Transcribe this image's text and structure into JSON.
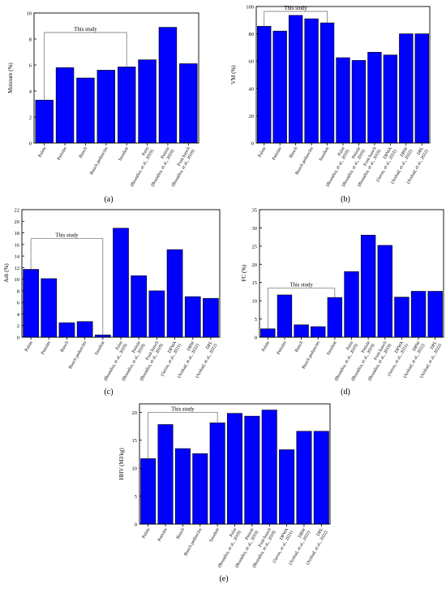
{
  "bar_color": "#0000ff",
  "chart_data": [
    {
      "panel": "(a)",
      "type": "bar",
      "ylabel": "Moisture (%)",
      "ylim": [
        0,
        10
      ],
      "yticks": [
        0,
        2,
        4,
        6,
        8,
        10
      ],
      "group_label": "This study",
      "group_count": 5,
      "categories": [
        [
          "Palms"
        ],
        [
          "Petioles"
        ],
        [
          "Bunch"
        ],
        [
          "Bunch peduncles"
        ],
        [
          "Sawdust"
        ],
        [
          "Palm",
          "(Bousdira, et al., 2019)"
        ],
        [
          "Petiole",
          "(Bousdira, et al., 2019)"
        ],
        [
          "Fruit bunch",
          "(Bousdira, et al., 2019)"
        ]
      ],
      "values": [
        3.3,
        5.8,
        5.0,
        5.6,
        5.85,
        6.4,
        8.9,
        6.1
      ]
    },
    {
      "panel": "(b)",
      "type": "bar",
      "ylabel": "VM (%)",
      "ylim": [
        0,
        100
      ],
      "yticks": [
        0,
        20,
        40,
        60,
        80,
        100
      ],
      "group_label": "This study",
      "group_count": 5,
      "categories": [
        [
          "Palms"
        ],
        [
          "Petioles"
        ],
        [
          "Bunch"
        ],
        [
          "Bunch peduncles"
        ],
        [
          "Sawdust"
        ],
        [
          "Palm",
          "(Bousdira, et al., 2019)"
        ],
        [
          "Petiole",
          "(Bousdira, et al., 2019)"
        ],
        [
          "Fruit bunch",
          "(Bousdira, et al., 2019)"
        ],
        [
          "DPWA",
          "(Jarros, et al., 2021)"
        ],
        [
          "DBW",
          "(Arshad, et al., 2022)"
        ],
        [
          "DPL",
          "(Arshad, et al., 2022)"
        ]
      ],
      "values": [
        85.5,
        82,
        93.5,
        91,
        88,
        62.5,
        60.5,
        66.5,
        64.5,
        80,
        80
      ]
    },
    {
      "panel": "(c)",
      "type": "bar",
      "ylabel": "Ash (%)",
      "ylim": [
        0,
        22
      ],
      "yticks": [
        0,
        2,
        4,
        6,
        8,
        10,
        12,
        14,
        16,
        18,
        20,
        22
      ],
      "group_label": "This study",
      "group_count": 5,
      "categories": [
        [
          "Palms"
        ],
        [
          "Petioles"
        ],
        [
          "Bunch"
        ],
        [
          "Bunch peduncles"
        ],
        [
          "Sawdust"
        ],
        [
          "Palm",
          "(Bousdira, et al., 2019)"
        ],
        [
          "Petiole",
          "(Bousdira, et al., 2019)"
        ],
        [
          "Fruit bunch",
          "(Bousdira, et al., 2019)"
        ],
        [
          "DPWA",
          "(Jarros, et al., 2021)"
        ],
        [
          "DBW",
          "(Arshad, et al., 2022)"
        ],
        [
          "DPL",
          "(Arshad, et al., 2022)"
        ]
      ],
      "values": [
        11.7,
        10.1,
        2.5,
        2.7,
        0.4,
        18.8,
        10.6,
        8.0,
        15.1,
        7.0,
        6.7
      ]
    },
    {
      "panel": "(d)",
      "type": "bar",
      "ylabel": "FC (%)",
      "ylim": [
        0,
        35
      ],
      "yticks": [
        0,
        5,
        10,
        15,
        20,
        25,
        30,
        35
      ],
      "group_label": "This study",
      "group_count": 5,
      "categories": [
        [
          "Palms"
        ],
        [
          "Petioles"
        ],
        [
          "Bunch"
        ],
        [
          "Bunch peduncles"
        ],
        [
          "Sawdust"
        ],
        [
          "Palm",
          "(Bousdira, et al., 2019)"
        ],
        [
          "Petiole",
          "(Bousdira, et al., 2019)"
        ],
        [
          "Fruit bunch",
          "(Bousdira, et al., 2019)"
        ],
        [
          "DPWA",
          "(Jarros, et al., 2021)"
        ],
        [
          "DBW",
          "(Arshad, et al., 2022)"
        ],
        [
          "DPL",
          "(Arshad, et al., 2022)"
        ]
      ],
      "values": [
        2.3,
        11.6,
        3.4,
        2.9,
        10.9,
        18.0,
        28.0,
        25.2,
        11.0,
        12.6,
        12.6
      ]
    },
    {
      "panel": "(e)",
      "type": "bar",
      "ylabel": "HHV (MJ/kg)",
      "ylim": [
        0,
        21.5
      ],
      "yticks": [
        0,
        5,
        10,
        15,
        20
      ],
      "group_label": "This study",
      "group_count": 5,
      "categories": [
        [
          "Palms"
        ],
        [
          "Petioles"
        ],
        [
          "Bunch"
        ],
        [
          "Bunch peduncles"
        ],
        [
          "Sawdust"
        ],
        [
          "Palm",
          "(Bousdira, et al., 2019)"
        ],
        [
          "Petiole",
          "(Bousdira, et al., 2019)"
        ],
        [
          "Fruit bunch",
          "(Bousdira, et al., 2019)"
        ],
        [
          "DPWA",
          "(Jarros, et al., 2021)"
        ],
        [
          "DBW",
          "(Arshad, et al., 2022)"
        ],
        [
          "DPL",
          "(Arshad, et al., 2022)"
        ]
      ],
      "values": [
        11.7,
        17.8,
        13.5,
        12.6,
        18.1,
        19.8,
        19.3,
        20.4,
        13.3,
        16.6,
        16.6
      ]
    }
  ]
}
